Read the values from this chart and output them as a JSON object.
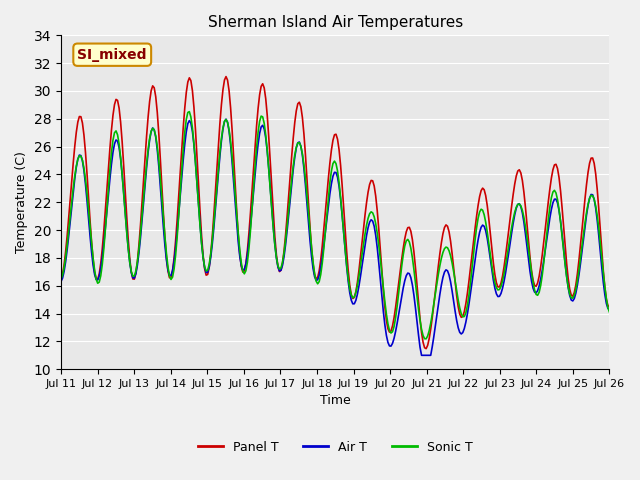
{
  "title": "Sherman Island Air Temperatures",
  "xlabel": "Time",
  "ylabel": "Temperature (C)",
  "ylim": [
    10,
    34
  ],
  "yticks": [
    10,
    12,
    14,
    16,
    18,
    20,
    22,
    24,
    26,
    28,
    30,
    32,
    34
  ],
  "panel_color": "#cc0000",
  "air_color": "#0000cc",
  "sonic_color": "#00bb00",
  "bg_color": "#e8e8e8",
  "annotation_text": "SI_mixed",
  "annotation_bg": "#ffffcc",
  "annotation_border": "#cc8800",
  "annotation_text_color": "#880000",
  "legend_entries": [
    "Panel T",
    "Air T",
    "Sonic T"
  ],
  "start_day": 11,
  "end_day": 26,
  "n_points": 360,
  "figsize": [
    6.4,
    4.8
  ],
  "dpi": 100
}
